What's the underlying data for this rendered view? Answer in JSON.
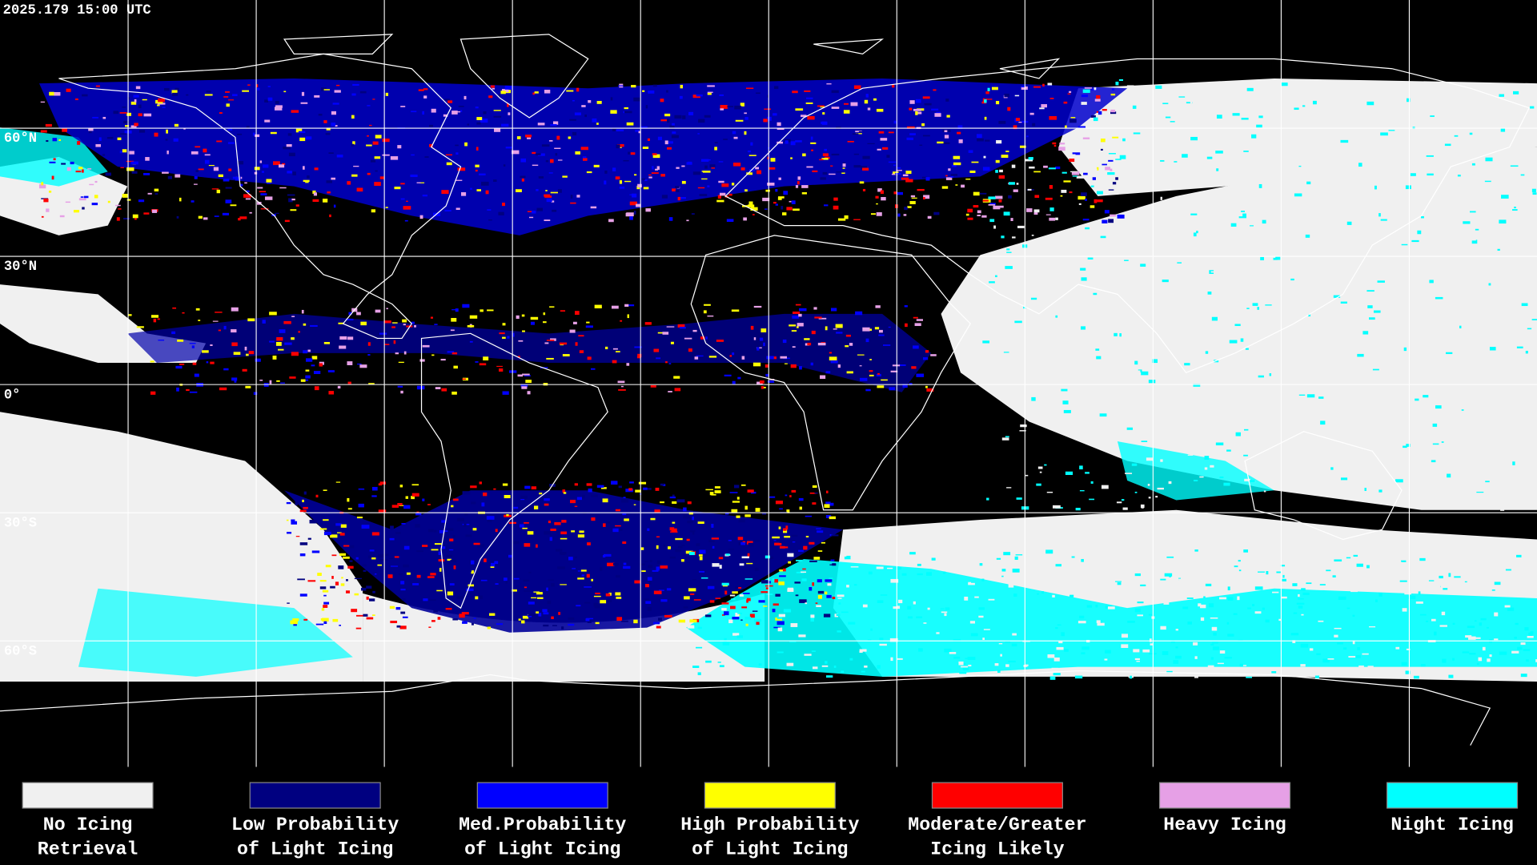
{
  "header": {
    "timestamp": "2025.179 15:00 UTC"
  },
  "latitude_labels": [
    "60°N",
    "30°N",
    "0°",
    "30°S",
    "60°S"
  ],
  "legend": [
    {
      "lines": [
        "No Icing",
        "Retrieval"
      ],
      "color": "#f0f0f0"
    },
    {
      "lines": [
        "Low Probability",
        "of Light Icing"
      ],
      "color": "#000080"
    },
    {
      "lines": [
        "Med.Probability",
        "of Light Icing"
      ],
      "color": "#0000ff"
    },
    {
      "lines": [
        "High Probability",
        "of Light Icing"
      ],
      "color": "#ffff00"
    },
    {
      "lines": [
        "Moderate/Greater",
        "Icing Likely"
      ],
      "color": "#ff0000"
    },
    {
      "lines": [
        "Heavy Icing"
      ],
      "color": "#e6a0e6"
    },
    {
      "lines": [
        "Night Icing"
      ],
      "color": "#00ffff"
    }
  ]
}
